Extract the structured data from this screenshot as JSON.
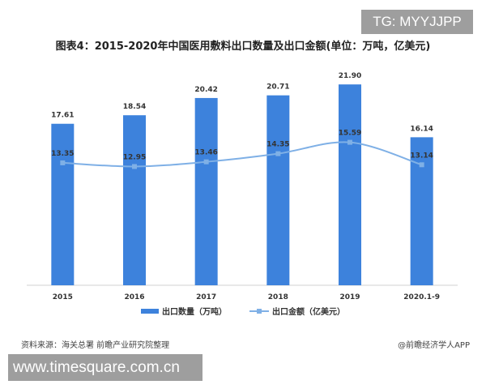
{
  "watermark_top": "TG: MYYJJPP",
  "watermark_bottom": "www.timesquare.com.cn",
  "footer": {
    "source": "资料来源：海关总署 前瞻产业研究院整理",
    "app": "@前瞻经济学人APP"
  },
  "colors": {
    "bar": "#3d82dc",
    "line": "#7fb0e6"
  },
  "chart_data": {
    "type": "bar",
    "title": "图表4：2015-2020年中国医用敷料出口数量及出口金额(单位：万吨，亿美元)",
    "categories": [
      "2015",
      "2016",
      "2017",
      "2018",
      "2019",
      "2020.1-9"
    ],
    "series": [
      {
        "name": "出口数量（万吨）",
        "type": "bar",
        "values": [
          17.61,
          18.54,
          20.42,
          20.71,
          21.9,
          16.14
        ]
      },
      {
        "name": "出口金额（亿美元）",
        "type": "line",
        "values": [
          13.35,
          12.95,
          13.46,
          14.35,
          15.59,
          13.14
        ]
      }
    ],
    "ylim": [
      0,
      22.8
    ],
    "grid": false,
    "legend": "bottom"
  }
}
